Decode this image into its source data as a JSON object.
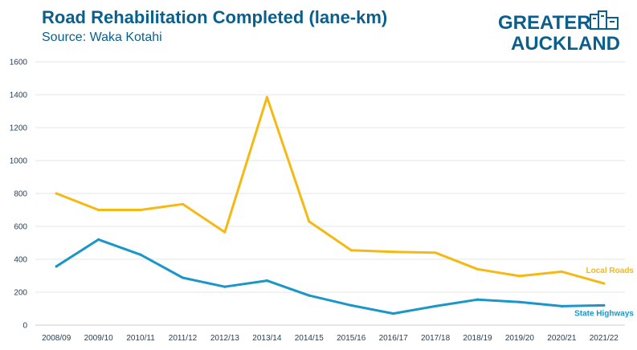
{
  "header": {
    "title": "Road Rehabilitation Completed (lane-km)",
    "subtitle": "Source: Waka Kotahi"
  },
  "logo": {
    "line1": "GREATER",
    "line2": "AUCKLAND",
    "icon": "building-icon",
    "color": "#0b5f8c"
  },
  "chart_data": {
    "type": "line",
    "categories": [
      "2008/09",
      "2009/10",
      "2010/11",
      "2011/12",
      "2012/13",
      "2013/14",
      "2014/15",
      "2015/16",
      "2016/17",
      "2017/18",
      "2018/19",
      "2019/20",
      "2020/21",
      "2021/22"
    ],
    "ylim": [
      0,
      1600
    ],
    "yticks": [
      "0",
      "200",
      "400",
      "600",
      "800",
      "1000",
      "1200",
      "1400",
      "1600"
    ],
    "grid": true,
    "series": [
      {
        "name": "Local Roads",
        "color": "#f5b914",
        "values": [
          800,
          700,
          700,
          735,
          565,
          1385,
          630,
          455,
          445,
          440,
          340,
          298,
          325,
          253
        ]
      },
      {
        "name": "State Highways",
        "color": "#1a96c8",
        "values": [
          357,
          520,
          428,
          288,
          233,
          270,
          180,
          120,
          70,
          115,
          155,
          140,
          115,
          120
        ]
      }
    ]
  }
}
